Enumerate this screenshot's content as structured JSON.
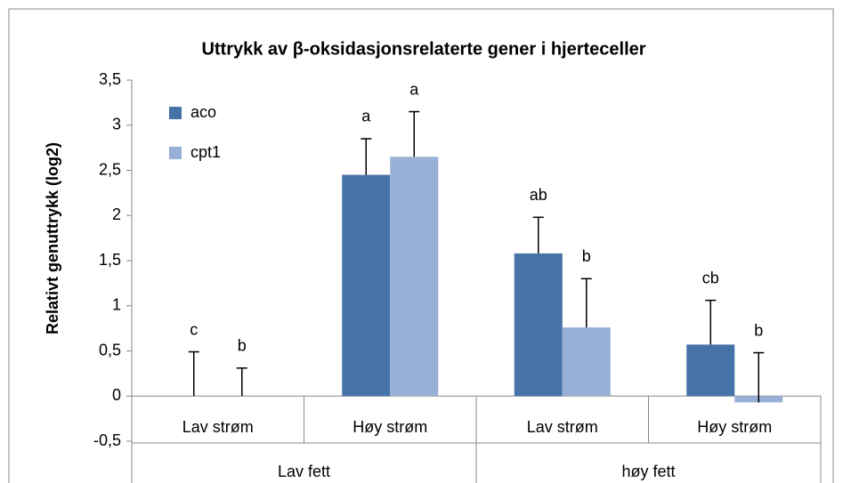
{
  "chart_data": {
    "type": "bar",
    "title": "Uttrykk av β-oksidasjonsrelaterte gener i hjerteceller",
    "y_label": "Relativt genuttrykk (log2)",
    "categories": [
      "Lav strøm",
      "Høy strøm",
      "Lav strøm",
      "Høy strøm"
    ],
    "groups": [
      "Lav fett",
      "høy fett"
    ],
    "series": [
      {
        "name": "aco",
        "color": "#4572a7",
        "values": [
          0,
          2.45,
          1.58,
          0.57
        ],
        "errors": [
          0.49,
          0.4,
          0.4,
          0.49
        ],
        "annotations": [
          "c",
          "a",
          "ab",
          "cb"
        ]
      },
      {
        "name": "cpt1",
        "color": "#98afd6",
        "values": [
          0,
          2.65,
          0.76,
          -0.07
        ],
        "errors": [
          0.31,
          0.5,
          0.54,
          0.55
        ],
        "annotations": [
          "b",
          "a",
          "b",
          "b"
        ]
      }
    ],
    "ylim": [
      -0.5,
      3.5
    ],
    "yticks": [
      {
        "value": -0.5,
        "label": "-0,5"
      },
      0,
      {
        "value": 0.5,
        "label": "0,5"
      },
      1,
      {
        "value": 1.5,
        "label": "1,5"
      },
      2,
      {
        "value": 2.5,
        "label": "2,5"
      },
      3,
      {
        "value": 3.5,
        "label": "3,5"
      }
    ],
    "legend": "top-left"
  }
}
